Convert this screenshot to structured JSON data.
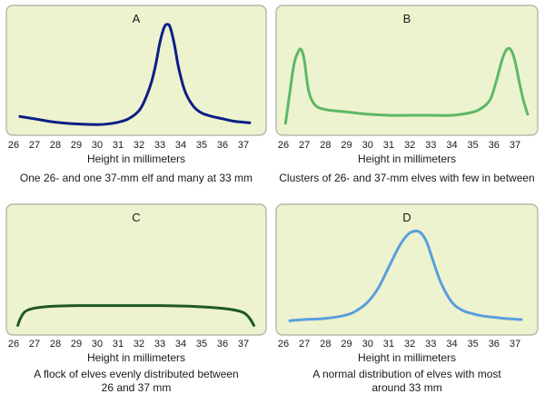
{
  "chart_data": [
    {
      "type": "line",
      "title": "A",
      "xlabel": "Height in millimeters",
      "caption": [
        "One 26- and one 37-mm elf and many at 33 mm"
      ],
      "ticks": [
        "26",
        "27",
        "28",
        "29",
        "30",
        "31",
        "32",
        "33",
        "34",
        "35",
        "36",
        "37"
      ],
      "xlim": [
        26,
        37.7
      ],
      "ylim": [
        0,
        1
      ],
      "color": "#0b1f86",
      "x": [
        26.3,
        27,
        28,
        29,
        30,
        30.5,
        31,
        31.5,
        32,
        32.3,
        32.6,
        32.8,
        33,
        33.2,
        33.35,
        33.5,
        33.7,
        33.9,
        34.2,
        34.6,
        35,
        35.5,
        36,
        36.5,
        37,
        37.3
      ],
      "y": [
        0.1,
        0.08,
        0.05,
        0.035,
        0.03,
        0.035,
        0.05,
        0.08,
        0.15,
        0.25,
        0.4,
        0.55,
        0.74,
        0.87,
        0.9,
        0.87,
        0.72,
        0.52,
        0.32,
        0.19,
        0.13,
        0.1,
        0.08,
        0.06,
        0.05,
        0.045
      ]
    },
    {
      "type": "line",
      "title": "B",
      "xlabel": "Height in millimeters",
      "caption": [
        "Clusters of 26- and 37-mm  elves with few in between"
      ],
      "ticks": [
        "26",
        "27",
        "28",
        "29",
        "30",
        "31",
        "32",
        "33",
        "34",
        "35",
        "36",
        "37"
      ],
      "xlim": [
        26,
        37.7
      ],
      "ylim": [
        0,
        1
      ],
      "color": "#5db865",
      "x": [
        26.1,
        26.3,
        26.5,
        26.7,
        26.85,
        27,
        27.2,
        27.5,
        28,
        29,
        30,
        31,
        32,
        33,
        34,
        34.8,
        35.3,
        35.8,
        36.1,
        36.4,
        36.6,
        36.8,
        37,
        37.2,
        37.4,
        37.6
      ],
      "y": [
        0.04,
        0.3,
        0.55,
        0.66,
        0.68,
        0.58,
        0.32,
        0.2,
        0.16,
        0.14,
        0.12,
        0.11,
        0.11,
        0.11,
        0.11,
        0.13,
        0.16,
        0.24,
        0.4,
        0.6,
        0.68,
        0.68,
        0.58,
        0.4,
        0.24,
        0.12
      ]
    },
    {
      "type": "line",
      "title": "C",
      "xlabel": "Height in millimeters",
      "caption": [
        "A flock of elves evenly distributed between",
        "26 and 37 mm"
      ],
      "ticks": [
        "26",
        "27",
        "28",
        "29",
        "30",
        "31",
        "32",
        "33",
        "34",
        "35",
        "36",
        "37"
      ],
      "xlim": [
        26,
        37.7
      ],
      "ylim": [
        0,
        1
      ],
      "color": "#1e5a1e",
      "x": [
        26.2,
        26.3,
        26.5,
        26.8,
        27.5,
        29,
        31,
        33,
        35,
        36.3,
        37,
        37.3,
        37.5
      ],
      "y": [
        0.02,
        0.07,
        0.13,
        0.16,
        0.18,
        0.19,
        0.19,
        0.19,
        0.18,
        0.16,
        0.13,
        0.08,
        0.02
      ]
    },
    {
      "type": "line",
      "title": "D",
      "xlabel": "Height in millimeters",
      "caption": [
        "A normal distribution of elves with most",
        "around 33 mm"
      ],
      "ticks": [
        "26",
        "27",
        "28",
        "29",
        "30",
        "31",
        "32",
        "33",
        "34",
        "35",
        "36",
        "37"
      ],
      "xlim": [
        26,
        37.7
      ],
      "ylim": [
        0,
        1
      ],
      "color": "#5a9fdc",
      "x": [
        26.3,
        27,
        28,
        29,
        29.5,
        30,
        30.5,
        31,
        31.5,
        31.9,
        32.2,
        32.5,
        32.8,
        33.1,
        33.5,
        34,
        34.5,
        35,
        35.5,
        36,
        36.5,
        37.3
      ],
      "y": [
        0.06,
        0.07,
        0.08,
        0.11,
        0.15,
        0.22,
        0.34,
        0.52,
        0.7,
        0.8,
        0.83,
        0.82,
        0.74,
        0.58,
        0.38,
        0.22,
        0.15,
        0.12,
        0.1,
        0.09,
        0.08,
        0.07
      ]
    }
  ]
}
